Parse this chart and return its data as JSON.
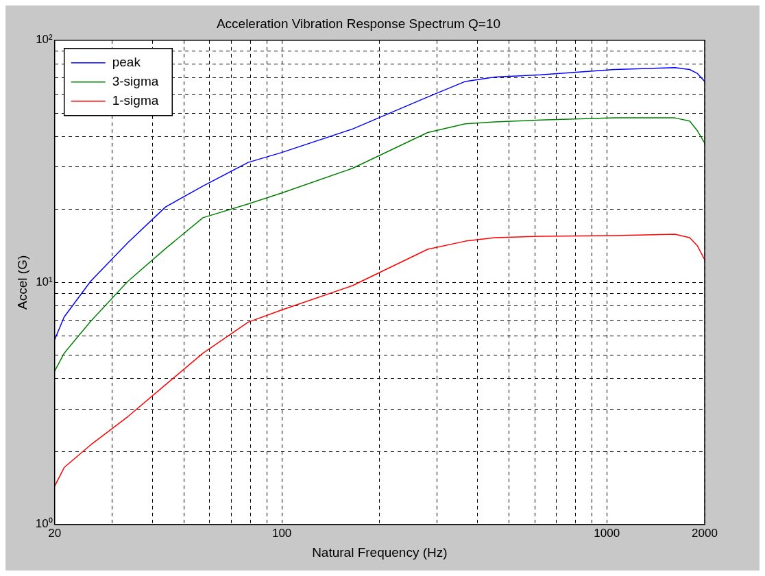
{
  "chart_data": {
    "type": "line",
    "title": "Acceleration Vibration Response Spectrum Q=10",
    "xlabel": "Natural Frequency (Hz)",
    "ylabel": "Accel (G)",
    "x": [
      20,
      21.4,
      25.8,
      33.6,
      43.9,
      57.2,
      78.8,
      100,
      165,
      281,
      367,
      452,
      624,
      1054,
      1620,
      1798,
      1897,
      2000
    ],
    "series": [
      {
        "name": "peak",
        "color": "#0000ff",
        "values": [
          5.8,
          7.2,
          10.1,
          14.6,
          20.5,
          25,
          31.3,
          34.4,
          43,
          58.3,
          67.6,
          70.5,
          72,
          75.7,
          77.1,
          75.7,
          73,
          67.6
        ]
      },
      {
        "name": "3-sigma",
        "color": "#008000",
        "values": [
          4.3,
          5.1,
          6.9,
          10.1,
          13.8,
          18.5,
          21.1,
          23.4,
          29.6,
          41.6,
          45.2,
          46,
          46.8,
          47.8,
          47.8,
          46.4,
          42.4,
          37.6
        ]
      },
      {
        "name": "1-sigma",
        "color": "#ff0000",
        "values": [
          1.44,
          1.72,
          2.13,
          2.79,
          3.78,
          5.1,
          6.85,
          7.7,
          9.7,
          13.7,
          14.8,
          15.3,
          15.5,
          15.6,
          15.8,
          15.3,
          14.2,
          12.4
        ]
      }
    ],
    "log": "xy",
    "xlim": [
      20,
      2000
    ],
    "ylim": [
      1,
      100
    ],
    "xticks": [
      20,
      {
        "value": 30,
        "label": null
      },
      {
        "value": 40,
        "label": null
      },
      {
        "value": 50,
        "label": null
      },
      {
        "value": 60,
        "label": null
      },
      {
        "value": 70,
        "label": null
      },
      {
        "value": 80,
        "label": null
      },
      {
        "value": 90,
        "label": null
      },
      100,
      {
        "value": 200,
        "label": null
      },
      {
        "value": 300,
        "label": null
      },
      {
        "value": 400,
        "label": null
      },
      {
        "value": 500,
        "label": null
      },
      {
        "value": 600,
        "label": null
      },
      {
        "value": 700,
        "label": null
      },
      {
        "value": 800,
        "label": null
      },
      {
        "value": 900,
        "label": null
      },
      1000,
      2000
    ],
    "yticks": [
      {
        "value": 1,
        "label": "10⁰"
      },
      {
        "value": 2,
        "label": null
      },
      {
        "value": 3,
        "label": null
      },
      {
        "value": 4,
        "label": null
      },
      {
        "value": 5,
        "label": null
      },
      {
        "value": 6,
        "label": null
      },
      {
        "value": 7,
        "label": null
      },
      {
        "value": 8,
        "label": null
      },
      {
        "value": 9,
        "label": null
      },
      {
        "value": 10,
        "label": "10¹"
      },
      {
        "value": 20,
        "label": null
      },
      {
        "value": 30,
        "label": null
      },
      {
        "value": 40,
        "label": null
      },
      {
        "value": 50,
        "label": null
      },
      {
        "value": 60,
        "label": null
      },
      {
        "value": 70,
        "label": null
      },
      {
        "value": 80,
        "label": null
      },
      {
        "value": 90,
        "label": null
      },
      {
        "value": 100,
        "label": "10²"
      }
    ],
    "grid": true,
    "line_style": "solid",
    "marker": "none",
    "legend": "top left"
  }
}
